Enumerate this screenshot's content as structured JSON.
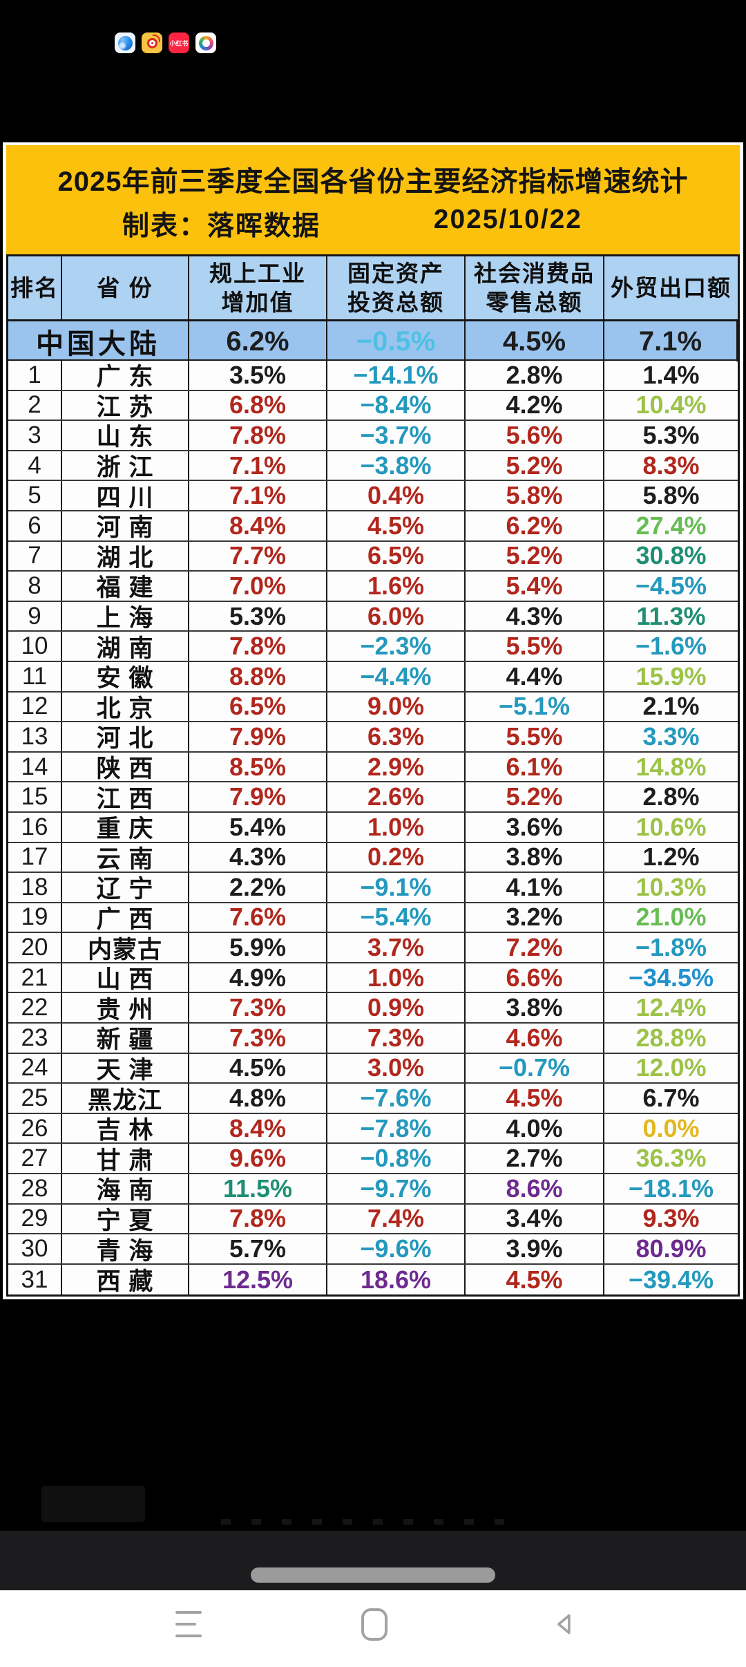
{
  "icons": {
    "browser": "browser-app",
    "weibo": "weibo-app",
    "xiaohongshu_label": "小红书",
    "gallery": "gallery-app"
  },
  "banner": {
    "title": "2025年前三季度全国各省份主要经济指标增速统计",
    "maker": "制表：落晖数据",
    "date": "2025/10/22"
  },
  "colors": {
    "black": "#1d1d1d",
    "red": "#b1271d",
    "teal": "#2499bd",
    "cyan": "#4fc0e4",
    "blue": "#2090cf",
    "darkgreen": "#1f8f74",
    "green": "#67bd54",
    "yellowgreen": "#9cc348",
    "gold": "#e3b81f",
    "purple": "#6e2b8f"
  },
  "table": {
    "headers": [
      [
        "排名"
      ],
      [
        "省 份"
      ],
      [
        "规上工业",
        "增加值"
      ],
      [
        "固定资产",
        "投资总额"
      ],
      [
        "社会消费品",
        "零售总额"
      ],
      [
        "外贸出口额"
      ]
    ],
    "summary": {
      "label": "中国大陆",
      "cells": [
        [
          "6.2%",
          "black"
        ],
        [
          "−0.5%",
          "cyan"
        ],
        [
          "4.5%",
          "black"
        ],
        [
          "7.1%",
          "black"
        ]
      ]
    },
    "rows": [
      {
        "rank": "1",
        "province": "广 东",
        "cells": [
          [
            "3.5%",
            "black"
          ],
          [
            "−14.1%",
            "teal"
          ],
          [
            "2.8%",
            "black"
          ],
          [
            "1.4%",
            "black"
          ]
        ]
      },
      {
        "rank": "2",
        "province": "江 苏",
        "cells": [
          [
            "6.8%",
            "red"
          ],
          [
            "−8.4%",
            "teal"
          ],
          [
            "4.2%",
            "black"
          ],
          [
            "10.4%",
            "yellowgreen"
          ]
        ]
      },
      {
        "rank": "3",
        "province": "山 东",
        "cells": [
          [
            "7.8%",
            "red"
          ],
          [
            "−3.7%",
            "teal"
          ],
          [
            "5.6%",
            "red"
          ],
          [
            "5.3%",
            "black"
          ]
        ]
      },
      {
        "rank": "4",
        "province": "浙 江",
        "cells": [
          [
            "7.1%",
            "red"
          ],
          [
            "−3.8%",
            "teal"
          ],
          [
            "5.2%",
            "red"
          ],
          [
            "8.3%",
            "red"
          ]
        ]
      },
      {
        "rank": "5",
        "province": "四 川",
        "cells": [
          [
            "7.1%",
            "red"
          ],
          [
            "0.4%",
            "red"
          ],
          [
            "5.8%",
            "red"
          ],
          [
            "5.8%",
            "black"
          ]
        ]
      },
      {
        "rank": "6",
        "province": "河 南",
        "cells": [
          [
            "8.4%",
            "red"
          ],
          [
            "4.5%",
            "red"
          ],
          [
            "6.2%",
            "red"
          ],
          [
            "27.4%",
            "green"
          ]
        ]
      },
      {
        "rank": "7",
        "province": "湖 北",
        "cells": [
          [
            "7.7%",
            "red"
          ],
          [
            "6.5%",
            "red"
          ],
          [
            "5.2%",
            "red"
          ],
          [
            "30.8%",
            "darkgreen"
          ]
        ]
      },
      {
        "rank": "8",
        "province": "福 建",
        "cells": [
          [
            "7.0%",
            "red"
          ],
          [
            "1.6%",
            "red"
          ],
          [
            "5.4%",
            "red"
          ],
          [
            "−4.5%",
            "teal"
          ]
        ]
      },
      {
        "rank": "9",
        "province": "上 海",
        "cells": [
          [
            "5.3%",
            "black"
          ],
          [
            "6.0%",
            "red"
          ],
          [
            "4.3%",
            "black"
          ],
          [
            "11.3%",
            "darkgreen"
          ]
        ]
      },
      {
        "rank": "10",
        "province": "湖 南",
        "cells": [
          [
            "7.8%",
            "red"
          ],
          [
            "−2.3%",
            "teal"
          ],
          [
            "5.5%",
            "red"
          ],
          [
            "−1.6%",
            "teal"
          ]
        ]
      },
      {
        "rank": "11",
        "province": "安 徽",
        "cells": [
          [
            "8.8%",
            "red"
          ],
          [
            "−4.4%",
            "teal"
          ],
          [
            "4.4%",
            "black"
          ],
          [
            "15.9%",
            "yellowgreen"
          ]
        ]
      },
      {
        "rank": "12",
        "province": "北 京",
        "cells": [
          [
            "6.5%",
            "red"
          ],
          [
            "9.0%",
            "red"
          ],
          [
            "−5.1%",
            "teal"
          ],
          [
            "2.1%",
            "black"
          ]
        ]
      },
      {
        "rank": "13",
        "province": "河 北",
        "cells": [
          [
            "7.9%",
            "red"
          ],
          [
            "6.3%",
            "red"
          ],
          [
            "5.5%",
            "red"
          ],
          [
            "3.3%",
            "teal"
          ]
        ]
      },
      {
        "rank": "14",
        "province": "陕 西",
        "cells": [
          [
            "8.5%",
            "red"
          ],
          [
            "2.9%",
            "red"
          ],
          [
            "6.1%",
            "red"
          ],
          [
            "14.8%",
            "yellowgreen"
          ]
        ]
      },
      {
        "rank": "15",
        "province": "江 西",
        "cells": [
          [
            "7.9%",
            "red"
          ],
          [
            "2.6%",
            "red"
          ],
          [
            "5.2%",
            "red"
          ],
          [
            "2.8%",
            "black"
          ]
        ]
      },
      {
        "rank": "16",
        "province": "重 庆",
        "cells": [
          [
            "5.4%",
            "black"
          ],
          [
            "1.0%",
            "red"
          ],
          [
            "3.6%",
            "black"
          ],
          [
            "10.6%",
            "yellowgreen"
          ]
        ]
      },
      {
        "rank": "17",
        "province": "云 南",
        "cells": [
          [
            "4.3%",
            "black"
          ],
          [
            "0.2%",
            "red"
          ],
          [
            "3.8%",
            "black"
          ],
          [
            "1.2%",
            "black"
          ]
        ]
      },
      {
        "rank": "18",
        "province": "辽 宁",
        "cells": [
          [
            "2.2%",
            "black"
          ],
          [
            "−9.1%",
            "teal"
          ],
          [
            "4.1%",
            "black"
          ],
          [
            "10.3%",
            "yellowgreen"
          ]
        ]
      },
      {
        "rank": "19",
        "province": "广 西",
        "cells": [
          [
            "7.6%",
            "red"
          ],
          [
            "−5.4%",
            "teal"
          ],
          [
            "3.2%",
            "black"
          ],
          [
            "21.0%",
            "green"
          ]
        ]
      },
      {
        "rank": "20",
        "province": "内蒙古",
        "cells": [
          [
            "5.9%",
            "black"
          ],
          [
            "3.7%",
            "red"
          ],
          [
            "7.2%",
            "red"
          ],
          [
            "−1.8%",
            "teal"
          ]
        ]
      },
      {
        "rank": "21",
        "province": "山 西",
        "cells": [
          [
            "4.9%",
            "black"
          ],
          [
            "1.0%",
            "red"
          ],
          [
            "6.6%",
            "red"
          ],
          [
            "−34.5%",
            "blue"
          ]
        ]
      },
      {
        "rank": "22",
        "province": "贵 州",
        "cells": [
          [
            "7.3%",
            "red"
          ],
          [
            "0.9%",
            "red"
          ],
          [
            "3.8%",
            "black"
          ],
          [
            "12.4%",
            "yellowgreen"
          ]
        ]
      },
      {
        "rank": "23",
        "province": "新 疆",
        "cells": [
          [
            "7.3%",
            "red"
          ],
          [
            "7.3%",
            "red"
          ],
          [
            "4.6%",
            "red"
          ],
          [
            "28.8%",
            "yellowgreen"
          ]
        ]
      },
      {
        "rank": "24",
        "province": "天 津",
        "cells": [
          [
            "4.5%",
            "black"
          ],
          [
            "3.0%",
            "red"
          ],
          [
            "−0.7%",
            "teal"
          ],
          [
            "12.0%",
            "yellowgreen"
          ]
        ]
      },
      {
        "rank": "25",
        "province": "黑龙江",
        "cells": [
          [
            "4.8%",
            "black"
          ],
          [
            "−7.6%",
            "teal"
          ],
          [
            "4.5%",
            "red"
          ],
          [
            "6.7%",
            "black"
          ]
        ]
      },
      {
        "rank": "26",
        "province": "吉 林",
        "cells": [
          [
            "8.4%",
            "red"
          ],
          [
            "−7.8%",
            "teal"
          ],
          [
            "4.0%",
            "black"
          ],
          [
            "0.0%",
            "gold"
          ]
        ]
      },
      {
        "rank": "27",
        "province": "甘 肃",
        "cells": [
          [
            "9.6%",
            "red"
          ],
          [
            "−0.8%",
            "teal"
          ],
          [
            "2.7%",
            "black"
          ],
          [
            "36.3%",
            "yellowgreen"
          ]
        ]
      },
      {
        "rank": "28",
        "province": "海 南",
        "cells": [
          [
            "11.5%",
            "darkgreen"
          ],
          [
            "−9.7%",
            "teal"
          ],
          [
            "8.6%",
            "purple"
          ],
          [
            "−18.1%",
            "teal"
          ]
        ]
      },
      {
        "rank": "29",
        "province": "宁 夏",
        "cells": [
          [
            "7.8%",
            "red"
          ],
          [
            "7.4%",
            "red"
          ],
          [
            "3.4%",
            "black"
          ],
          [
            "9.3%",
            "red"
          ]
        ]
      },
      {
        "rank": "30",
        "province": "青 海",
        "cells": [
          [
            "5.7%",
            "black"
          ],
          [
            "−9.6%",
            "teal"
          ],
          [
            "3.9%",
            "black"
          ],
          [
            "80.9%",
            "purple"
          ]
        ]
      },
      {
        "rank": "31",
        "province": "西 藏",
        "cells": [
          [
            "12.5%",
            "purple"
          ],
          [
            "18.6%",
            "purple"
          ],
          [
            "4.5%",
            "red"
          ],
          [
            "−39.4%",
            "teal"
          ]
        ]
      }
    ]
  }
}
